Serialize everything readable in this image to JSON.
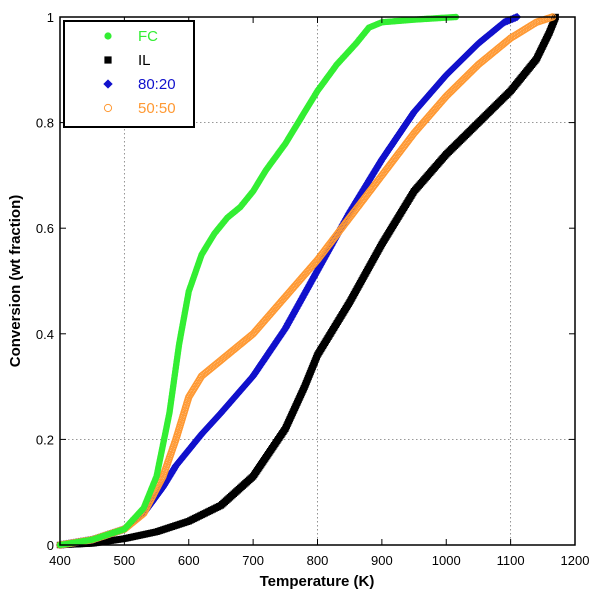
{
  "chart_data": {
    "type": "scatter",
    "xlabel": "Temperature (K)",
    "ylabel": "Conversion (wt fraction)",
    "xlim": [
      400,
      1200
    ],
    "ylim": [
      0,
      1
    ],
    "x_ticks": [
      "400",
      "500",
      "600",
      "700",
      "800",
      "900",
      "1000",
      "1100",
      "1200"
    ],
    "y_ticks": [
      "0",
      "0.2",
      "0.4",
      "0.6",
      "0.8",
      "1"
    ],
    "grid": "dotted at x=500, 800, 1100 and y=0.2, 0.8",
    "legend_position": "top-left",
    "series": [
      {
        "name": "FC",
        "color": "#33ee33",
        "marker": "circle-filled",
        "points": [
          [
            400,
            0.0
          ],
          [
            450,
            0.01
          ],
          [
            500,
            0.03
          ],
          [
            530,
            0.07
          ],
          [
            550,
            0.13
          ],
          [
            570,
            0.25
          ],
          [
            585,
            0.38
          ],
          [
            600,
            0.48
          ],
          [
            620,
            0.55
          ],
          [
            640,
            0.59
          ],
          [
            660,
            0.62
          ],
          [
            680,
            0.64
          ],
          [
            700,
            0.67
          ],
          [
            720,
            0.71
          ],
          [
            750,
            0.76
          ],
          [
            780,
            0.82
          ],
          [
            800,
            0.86
          ],
          [
            830,
            0.91
          ],
          [
            860,
            0.95
          ],
          [
            880,
            0.98
          ],
          [
            900,
            0.99
          ],
          [
            950,
            0.995
          ],
          [
            1015,
            1.0
          ]
        ]
      },
      {
        "name": "IL",
        "color": "#000000",
        "marker": "square-filled",
        "points": [
          [
            400,
            0.0
          ],
          [
            450,
            0.003
          ],
          [
            500,
            0.012
          ],
          [
            550,
            0.025
          ],
          [
            600,
            0.045
          ],
          [
            650,
            0.075
          ],
          [
            700,
            0.13
          ],
          [
            750,
            0.22
          ],
          [
            780,
            0.3
          ],
          [
            800,
            0.36
          ],
          [
            850,
            0.46
          ],
          [
            900,
            0.57
          ],
          [
            950,
            0.67
          ],
          [
            1000,
            0.74
          ],
          [
            1050,
            0.8
          ],
          [
            1100,
            0.86
          ],
          [
            1140,
            0.92
          ],
          [
            1160,
            0.97
          ],
          [
            1170,
            1.0
          ]
        ]
      },
      {
        "name": "80:20",
        "color": "#1111cc",
        "marker": "diamond-filled",
        "points": [
          [
            400,
            0.0
          ],
          [
            450,
            0.01
          ],
          [
            500,
            0.03
          ],
          [
            530,
            0.06
          ],
          [
            560,
            0.11
          ],
          [
            580,
            0.15
          ],
          [
            600,
            0.18
          ],
          [
            620,
            0.21
          ],
          [
            650,
            0.25
          ],
          [
            700,
            0.32
          ],
          [
            750,
            0.41
          ],
          [
            800,
            0.52
          ],
          [
            850,
            0.63
          ],
          [
            900,
            0.73
          ],
          [
            950,
            0.82
          ],
          [
            1000,
            0.89
          ],
          [
            1050,
            0.95
          ],
          [
            1090,
            0.99
          ],
          [
            1110,
            1.0
          ]
        ]
      },
      {
        "name": "50:50",
        "color": "#ff9933",
        "marker": "circle-open",
        "points": [
          [
            400,
            0.0
          ],
          [
            450,
            0.01
          ],
          [
            500,
            0.03
          ],
          [
            530,
            0.06
          ],
          [
            560,
            0.13
          ],
          [
            580,
            0.2
          ],
          [
            600,
            0.28
          ],
          [
            620,
            0.32
          ],
          [
            650,
            0.35
          ],
          [
            700,
            0.4
          ],
          [
            750,
            0.47
          ],
          [
            800,
            0.54
          ],
          [
            850,
            0.62
          ],
          [
            900,
            0.7
          ],
          [
            950,
            0.78
          ],
          [
            1000,
            0.85
          ],
          [
            1050,
            0.91
          ],
          [
            1100,
            0.96
          ],
          [
            1140,
            0.99
          ],
          [
            1165,
            1.0
          ]
        ]
      }
    ]
  }
}
